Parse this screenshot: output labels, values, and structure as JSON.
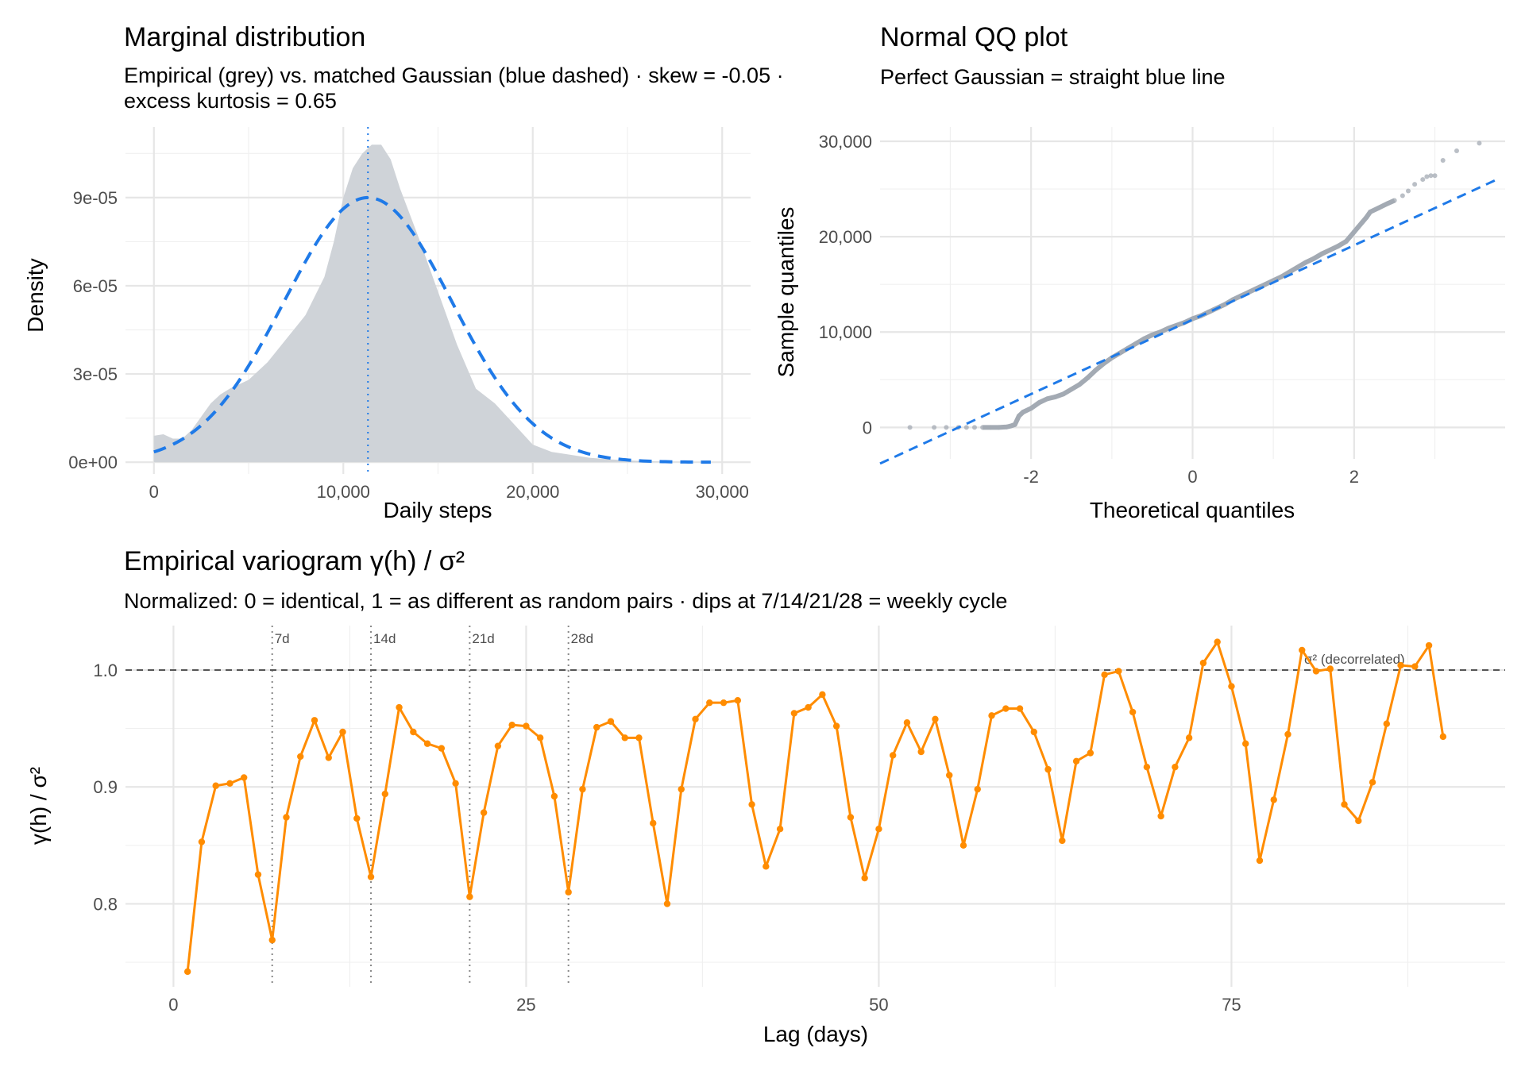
{
  "colors": {
    "empirical_fill": "#cfd3d8",
    "gaussian": "#1f7ae8",
    "qq_points": "#a3aab3",
    "variogram": "#ff8c00",
    "reference": "#555555"
  },
  "chart_data": [
    {
      "type": "area",
      "title": "Marginal distribution",
      "subtitle": "Empirical (grey) vs. matched Gaussian (blue dashed) · skew = -0.05 · excess kurtosis = 0.65",
      "xlabel": "Daily steps",
      "ylabel": "Density",
      "xlim": [
        -1500,
        31500
      ],
      "ylim": [
        -4e-06,
        0.000114
      ],
      "xticks": [
        0,
        10000,
        20000,
        30000
      ],
      "xtick_labels": [
        "0",
        "10,000",
        "20,000",
        "30,000"
      ],
      "yticks": [
        0,
        3e-05,
        6e-05,
        9e-05
      ],
      "ytick_labels": [
        "0e+00",
        "3e-05",
        "6e-05",
        "9e-05"
      ],
      "grid": true,
      "mean_line": 11300,
      "empirical": {
        "x": [
          0,
          500,
          1000,
          1500,
          2000,
          3000,
          3500,
          4000,
          5000,
          6000,
          7000,
          8000,
          9000,
          9500,
          10000,
          10500,
          11000,
          11500,
          12000,
          12500,
          13000,
          14000,
          15000,
          16000,
          17000,
          18000,
          19000,
          20000,
          21000,
          22000,
          23000,
          24000,
          26000,
          28000,
          29500
        ],
        "y": [
          9e-06,
          9.5e-06,
          8e-06,
          8e-06,
          1.1e-05,
          2e-05,
          2.3e-05,
          2.5e-05,
          2.8e-05,
          3.4e-05,
          4.2e-05,
          5e-05,
          6.3e-05,
          7.5e-05,
          9e-05,
          0.0001,
          0.000105,
          0.000108,
          0.000108,
          0.000103,
          9.3e-05,
          7.6e-05,
          5.8e-05,
          4e-05,
          2.5e-05,
          2e-05,
          1.3e-05,
          6e-06,
          3.5e-06,
          2.5e-06,
          1.5e-06,
          1e-06,
          3e-07,
          1e-07,
          0
        ]
      },
      "gaussian": {
        "mean": 11300,
        "sd": 4433,
        "x_range": [
          0,
          29500
        ]
      }
    },
    {
      "type": "scatter",
      "title": "Normal QQ plot",
      "subtitle": "Perfect Gaussian = straight blue line",
      "xlabel": "Theoretical quantiles",
      "ylabel": "Sample quantiles",
      "xlim": [
        -3.87,
        3.87
      ],
      "ylim": [
        -3300,
        31500
      ],
      "xticks": [
        -2,
        0,
        2
      ],
      "xtick_labels": [
        "-2",
        "0",
        "2"
      ],
      "yticks": [
        0,
        10000,
        20000,
        30000
      ],
      "ytick_labels": [
        "0",
        "10,000",
        "20,000",
        "30,000"
      ],
      "grid": true,
      "reference_line": {
        "intercept": 11300,
        "slope": 3900
      },
      "points": {
        "x": [
          -3.5,
          -3.2,
          -3.05,
          -2.9,
          -2.8,
          -2.7,
          -2.6,
          -2.5,
          -2.4,
          -2.3,
          -2.25,
          -2.2,
          -2.15,
          -2.1,
          -2.0,
          -1.9,
          -1.8,
          -1.7,
          -1.6,
          -1.5,
          -1.4,
          -1.3,
          -1.2,
          -1.1,
          -1.0,
          -0.9,
          -0.8,
          -0.7,
          -0.6,
          -0.5,
          -0.4,
          -0.3,
          -0.2,
          -0.1,
          0,
          0.1,
          0.2,
          0.3,
          0.4,
          0.5,
          0.6,
          0.7,
          0.8,
          0.9,
          1.0,
          1.1,
          1.2,
          1.3,
          1.4,
          1.5,
          1.6,
          1.7,
          1.8,
          1.9,
          1.95,
          2.0,
          2.05,
          2.1,
          2.15,
          2.2,
          2.3,
          2.42,
          2.5,
          2.6,
          2.67,
          2.75,
          2.85,
          2.9,
          2.95,
          3.0,
          3.1,
          3.27,
          3.55
        ],
        "y": [
          0,
          0,
          0,
          0,
          0,
          0,
          0,
          0,
          0,
          50,
          150,
          300,
          1200,
          1600,
          2000,
          2600,
          3000,
          3200,
          3500,
          4000,
          4500,
          5200,
          6000,
          6700,
          7300,
          7800,
          8300,
          8800,
          9300,
          9700,
          10000,
          10400,
          10700,
          11000,
          11400,
          11700,
          12100,
          12500,
          12900,
          13400,
          13800,
          14200,
          14600,
          15000,
          15400,
          15800,
          16300,
          16800,
          17300,
          17700,
          18200,
          18600,
          19000,
          19500,
          20000,
          20500,
          21000,
          21500,
          22000,
          22600,
          23000,
          23500,
          23800,
          24300,
          24800,
          25500,
          26000,
          26300,
          26400,
          26400,
          28000,
          29000,
          29800
        ]
      }
    },
    {
      "type": "line",
      "title": "Empirical variogram γ(h) / σ²",
      "subtitle": "Normalized: 0 = identical, 1 = as different as random pairs · dips at 7/14/21/28 = weekly cycle",
      "xlabel": "Lag (days)",
      "ylabel": "γ(h) / σ²",
      "xlim": [
        -3.4,
        94.4
      ],
      "ylim": [
        0.729,
        1.038
      ],
      "xticks": [
        0,
        25,
        50,
        75
      ],
      "xtick_labels": [
        "0",
        "25",
        "50",
        "75"
      ],
      "yticks": [
        0.8,
        0.9,
        1.0
      ],
      "ytick_labels": [
        "0.8",
        "0.9",
        "1.0"
      ],
      "grid": true,
      "reference_line": {
        "y": 1.0,
        "label": "σ² (decorrelated)"
      },
      "weekly_markers": [
        {
          "x": 7,
          "label": "7d"
        },
        {
          "x": 14,
          "label": "14d"
        },
        {
          "x": 21,
          "label": "21d"
        },
        {
          "x": 28,
          "label": "28d"
        }
      ],
      "x": [
        1,
        2,
        3,
        4,
        5,
        6,
        7,
        8,
        9,
        10,
        11,
        12,
        13,
        14,
        15,
        16,
        17,
        18,
        19,
        20,
        21,
        22,
        23,
        24,
        25,
        26,
        27,
        28,
        29,
        30,
        31,
        32,
        33,
        34,
        35,
        36,
        37,
        38,
        39,
        40,
        41,
        42,
        43,
        44,
        45,
        46,
        47,
        48,
        49,
        50,
        51,
        52,
        53,
        54,
        55,
        56,
        57,
        58,
        59,
        60,
        61,
        62,
        63,
        64,
        65,
        66,
        67,
        68,
        69,
        70,
        71,
        72,
        73,
        74,
        75,
        76,
        77,
        78,
        79,
        80,
        81,
        82,
        83,
        84,
        85,
        86,
        87,
        88,
        89,
        90
      ],
      "y": [
        0.742,
        0.853,
        0.901,
        0.903,
        0.908,
        0.825,
        0.769,
        0.874,
        0.926,
        0.957,
        0.925,
        0.947,
        0.873,
        0.823,
        0.894,
        0.968,
        0.947,
        0.937,
        0.933,
        0.903,
        0.806,
        0.878,
        0.935,
        0.953,
        0.952,
        0.942,
        0.892,
        0.81,
        0.898,
        0.951,
        0.956,
        0.942,
        0.942,
        0.869,
        0.8,
        0.898,
        0.958,
        0.972,
        0.972,
        0.974,
        0.885,
        0.832,
        0.864,
        0.963,
        0.968,
        0.979,
        0.952,
        0.874,
        0.822,
        0.864,
        0.927,
        0.955,
        0.93,
        0.958,
        0.91,
        0.85,
        0.898,
        0.961,
        0.967,
        0.967,
        0.947,
        0.915,
        0.854,
        0.922,
        0.929,
        0.996,
        0.999,
        0.964,
        0.917,
        0.875,
        0.917,
        0.942,
        1.006,
        1.024,
        0.986,
        0.937,
        0.837,
        0.889,
        0.945,
        1.017,
        0.999,
        1.001,
        0.885,
        0.871,
        0.904,
        0.954,
        1.004,
        1.003,
        1.021,
        0.943
      ]
    }
  ]
}
